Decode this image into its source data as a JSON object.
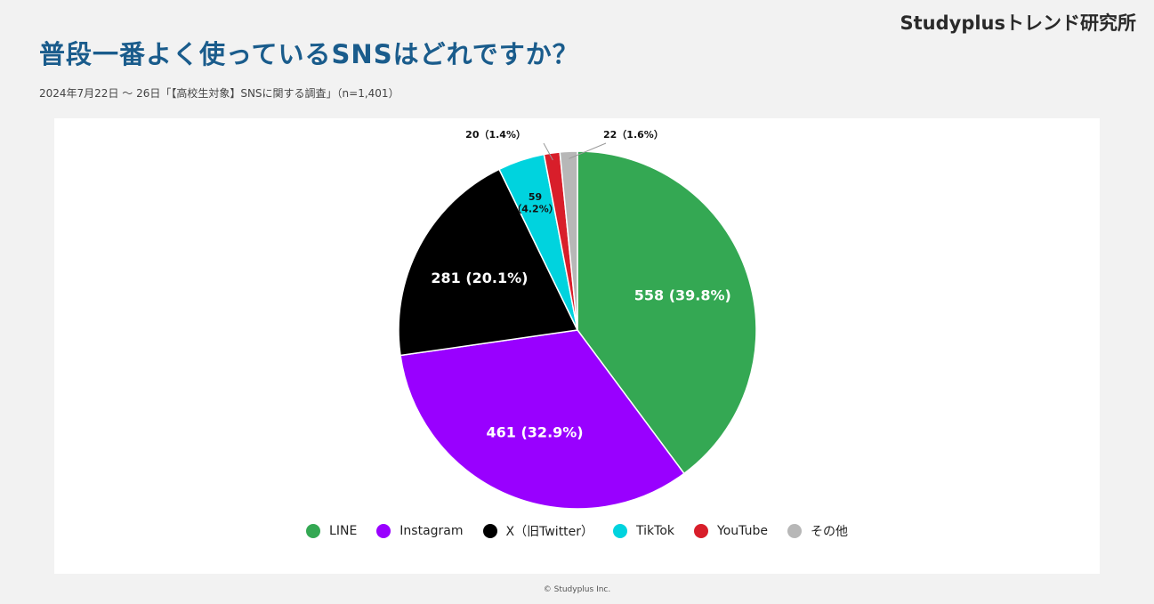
{
  "brand": "Studyplusトレンド研究所",
  "title": "普段一番よく使っているSNSはどれですか？",
  "subtitle": "2024年7月22日 〜 26日「【高校生対象】SNSに関する調査」（n=1,401）",
  "footer": "© Studyplus Inc.",
  "chart_data": {
    "type": "pie",
    "start_angle_deg": 0,
    "direction": "clockwise",
    "legend_position": "bottom",
    "slices": [
      {
        "label": "LINE",
        "value": 558,
        "percent": 39.8,
        "color": "#34a853",
        "data_label": "558 (39.8%)"
      },
      {
        "label": "Instagram",
        "value": 461,
        "percent": 32.9,
        "color": "#9900ff",
        "data_label": "461 (32.9%)"
      },
      {
        "label": "X（旧Twitter）",
        "value": 281,
        "percent": 20.1,
        "color": "#000000",
        "data_label": "281 (20.1%)"
      },
      {
        "label": "TikTok",
        "value": 59,
        "percent": 4.2,
        "color": "#00d3de",
        "data_label": "59\n（4.2%）"
      },
      {
        "label": "YouTube",
        "value": 20,
        "percent": 1.4,
        "color": "#d81e2a",
        "data_label": "20（1.4%）"
      },
      {
        "label": "その他",
        "value": 22,
        "percent": 1.6,
        "color": "#b7b7b7",
        "data_label": "22（1.6%）"
      }
    ]
  }
}
